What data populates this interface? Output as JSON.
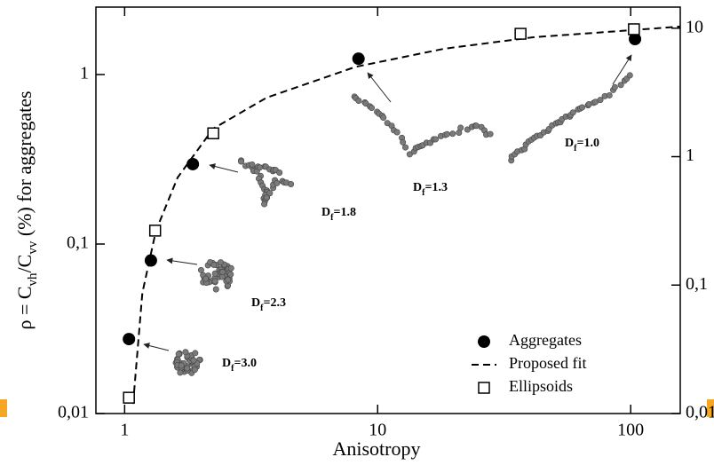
{
  "chart_data": {
    "type": "scatter",
    "x_label": "Anisotropy",
    "y_label": [
      "ρ = C",
      "vh",
      "/C",
      "vv",
      " (%) for aggregates"
    ],
    "log_scale": true,
    "xlim": [
      0.77,
      157
    ],
    "xticks": [
      1,
      10,
      100
    ],
    "ylim": [
      0.01,
      2.5
    ],
    "yticks": [
      {
        "value": 0.01,
        "label": "0,01"
      },
      {
        "value": 0.1,
        "label": "0,1"
      },
      1
    ],
    "y2lim": [
      0.01,
      14.6
    ],
    "y2ticks": [
      {
        "value": 0.01,
        "label": "0,01"
      },
      {
        "value": 0.1,
        "label": "0,1"
      },
      1,
      10
    ],
    "legend": "lower right",
    "series": [
      {
        "name": "Aggregates",
        "marker": "circle",
        "color": "#000000",
        "x": [
          1.04,
          1.27,
          1.86,
          8.4,
          104
        ],
        "values": [
          0.0275,
          0.08,
          0.296,
          1.24,
          1.62
        ]
      },
      {
        "name": "Proposed fit",
        "marker": "none",
        "line": "dashed",
        "color": "#000000",
        "x": [
          1.08,
          1.175,
          1.33,
          1.62,
          2.24,
          3.64,
          8.17,
          18.3,
          41.2,
          92.3,
          157
        ],
        "values": [
          0.0114,
          0.0515,
          0.12,
          0.247,
          0.48,
          0.73,
          1.11,
          1.42,
          1.66,
          1.81,
          1.92
        ]
      },
      {
        "name": "Ellipsoids",
        "marker": "square",
        "color": "#000000",
        "x": [
          1.04,
          1.32,
          2.24,
          36.7,
          103
        ],
        "values": [
          0.0124,
          0.12,
          0.45,
          1.74,
          1.85
        ]
      }
    ],
    "annotations": [
      {
        "base": "D",
        "sub": "f",
        "text": "=1.8"
      },
      {
        "base": "D",
        "sub": "f",
        "text": "=2.3"
      },
      {
        "base": "D",
        "sub": "f",
        "text": "=3.0"
      },
      {
        "base": "D",
        "sub": "f",
        "text": "=1.3"
      },
      {
        "base": "D",
        "sub": "f",
        "text": "=1.0"
      }
    ]
  }
}
